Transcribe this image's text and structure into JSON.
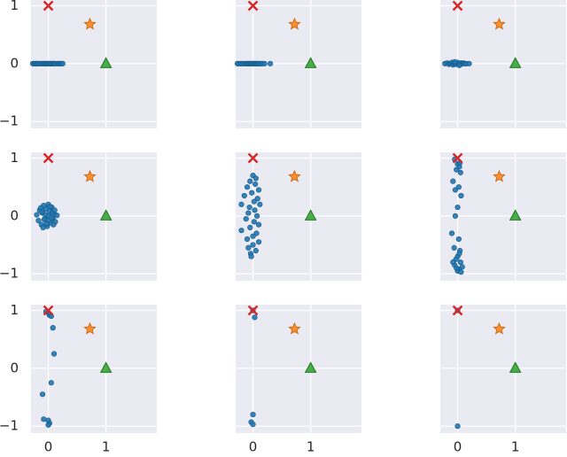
{
  "chart_data": [
    {
      "type": "scatter",
      "xlim": [
        -0.3,
        1.88
      ],
      "ylim": [
        -1.12,
        1.1
      ],
      "xticks": [
        0,
        1
      ],
      "yticks": [
        {
          "value": -1,
          "label": "−1"
        },
        0,
        1
      ],
      "grid": true,
      "series": [
        {
          "color": "#1f77b4",
          "marker": "circle",
          "x": [
            -0.27,
            -0.24,
            -0.22,
            -0.2,
            -0.18,
            -0.15,
            -0.13,
            -0.1,
            -0.08,
            -0.06,
            -0.04,
            -0.02,
            0,
            0.02,
            0.04,
            0.06,
            0.08,
            0.1,
            0.12,
            0.15,
            0.18,
            0.2,
            0.22,
            0.25
          ],
          "values": [
            0,
            0,
            0,
            0,
            0,
            0,
            0,
            0,
            0,
            0,
            0,
            0,
            0,
            0,
            0,
            0,
            0,
            0,
            0,
            0,
            0,
            0,
            0,
            0
          ]
        },
        {
          "color": "#d62728",
          "marker": "x",
          "x": [
            0
          ],
          "values": [
            1
          ]
        },
        {
          "color": "#ff7f0e",
          "marker": "star",
          "x": [
            0.72
          ],
          "values": [
            0.68
          ]
        },
        {
          "color": "#2ca02c",
          "marker": "triangle",
          "x": [
            1
          ],
          "values": [
            0
          ]
        }
      ]
    },
    {
      "type": "scatter",
      "xlim": [
        -0.3,
        1.88
      ],
      "ylim": [
        -1.12,
        1.1
      ],
      "xticks": [
        0,
        1
      ],
      "yticks": [
        {
          "value": -1,
          "label": "−1"
        },
        0,
        1
      ],
      "grid": true,
      "series": [
        {
          "color": "#1f77b4",
          "marker": "circle",
          "x": [
            -0.27,
            -0.24,
            -0.21,
            -0.18,
            -0.15,
            -0.12,
            -0.1,
            -0.08,
            -0.06,
            -0.04,
            -0.02,
            0,
            0.02,
            0.04,
            0.06,
            0.08,
            0.1,
            0.13,
            0.16,
            0.2,
            0.3
          ],
          "values": [
            0,
            0,
            0,
            0,
            0,
            0,
            0,
            0,
            0,
            0,
            0,
            0,
            0,
            0,
            0,
            0,
            0,
            0,
            0,
            0,
            0
          ]
        },
        {
          "color": "#d62728",
          "marker": "x",
          "x": [
            0
          ],
          "values": [
            1
          ]
        },
        {
          "color": "#ff7f0e",
          "marker": "star",
          "x": [
            0.72
          ],
          "values": [
            0.68
          ]
        },
        {
          "color": "#2ca02c",
          "marker": "triangle",
          "x": [
            1
          ],
          "values": [
            0
          ]
        }
      ]
    },
    {
      "type": "scatter",
      "xlim": [
        -0.3,
        1.88
      ],
      "ylim": [
        -1.12,
        1.1
      ],
      "xticks": [
        0,
        1
      ],
      "yticks": [
        {
          "value": -1,
          "label": "−1"
        },
        0,
        1
      ],
      "grid": true,
      "series": [
        {
          "color": "#1f77b4",
          "marker": "circle",
          "x": [
            -0.22,
            -0.18,
            -0.15,
            -0.12,
            -0.1,
            -0.08,
            -0.06,
            -0.04,
            -0.02,
            0,
            0.02,
            0.04,
            0.06,
            0.08,
            0.1,
            0.12,
            0.15,
            0.2,
            -0.05,
            0.03
          ],
          "values": [
            0,
            0.01,
            -0.01,
            0,
            0.02,
            -0.02,
            0.01,
            0,
            -0.01,
            0.02,
            0,
            -0.02,
            0.01,
            0,
            0.01,
            0,
            0,
            0,
            0.03,
            -0.03
          ]
        },
        {
          "color": "#d62728",
          "marker": "x",
          "x": [
            0
          ],
          "values": [
            1
          ]
        },
        {
          "color": "#ff7f0e",
          "marker": "star",
          "x": [
            0.72
          ],
          "values": [
            0.68
          ]
        },
        {
          "color": "#2ca02c",
          "marker": "triangle",
          "x": [
            1
          ],
          "values": [
            0
          ]
        }
      ]
    },
    {
      "type": "scatter",
      "xlim": [
        -0.3,
        1.88
      ],
      "ylim": [
        -1.12,
        1.1
      ],
      "xticks": [
        0,
        1
      ],
      "yticks": [
        {
          "value": -1,
          "label": "−1"
        },
        0,
        1
      ],
      "grid": true,
      "series": [
        {
          "color": "#1f77b4",
          "marker": "circle",
          "x": [
            -0.2,
            -0.17,
            -0.15,
            -0.12,
            -0.1,
            -0.08,
            -0.06,
            -0.04,
            -0.02,
            0,
            0.02,
            0.04,
            0.06,
            0.08,
            0.1,
            0.12,
            -0.13,
            -0.09,
            -0.05,
            0,
            0.03,
            0.07,
            0.11,
            -0.03,
            0.01,
            0.05,
            -0.07,
            0.09,
            0.15,
            -0.11
          ],
          "values": [
            0.02,
            -0.08,
            0.1,
            -0.15,
            0.05,
            0.18,
            -0.05,
            0.12,
            -0.18,
            0.2,
            0.08,
            -0.12,
            0.15,
            -0.05,
            0.03,
            -0.1,
            0.14,
            -0.2,
            0.02,
            -0.08,
            0.16,
            0.06,
            0.1,
            -0.14,
            0,
            -0.03,
            -0.06,
            -0.15,
            0.01,
            0.07
          ]
        },
        {
          "color": "#d62728",
          "marker": "x",
          "x": [
            0
          ],
          "values": [
            1
          ]
        },
        {
          "color": "#ff7f0e",
          "marker": "star",
          "x": [
            0.72
          ],
          "values": [
            0.68
          ]
        },
        {
          "color": "#2ca02c",
          "marker": "triangle",
          "x": [
            1
          ],
          "values": [
            0
          ]
        }
      ]
    },
    {
      "type": "scatter",
      "xlim": [
        -0.3,
        1.88
      ],
      "ylim": [
        -1.12,
        1.1
      ],
      "xticks": [
        0,
        1
      ],
      "yticks": [
        {
          "value": -1,
          "label": "−1"
        },
        0,
        1
      ],
      "grid": true,
      "series": [
        {
          "color": "#1f77b4",
          "marker": "circle",
          "x": [
            -0.2,
            -0.15,
            -0.1,
            -0.05,
            0,
            0.05,
            0.1,
            0.08,
            -0.02,
            0.03,
            -0.08,
            0.12,
            -0.12,
            0.02,
            -0.05,
            0.06,
            0.1,
            -0.2,
            -0.1,
            0,
            0.05,
            -0.04,
            0.1,
            -0.08,
            0.02,
            0.07,
            -0.06,
            0.0,
            0.04,
            -0.03
          ],
          "values": [
            0.2,
            0.35,
            0.5,
            0.6,
            0.7,
            0.65,
            0.45,
            0.3,
            0.4,
            0.1,
            0.05,
            0.2,
            -0.05,
            -0.1,
            -0.2,
            -0.3,
            -0.15,
            -0.25,
            -0.4,
            -0.5,
            -0.6,
            -0.65,
            -0.45,
            -0.55,
            0.25,
            0.0,
            0.15,
            -0.35,
            0.55,
            -0.7
          ]
        },
        {
          "color": "#d62728",
          "marker": "x",
          "x": [
            0
          ],
          "values": [
            1
          ]
        },
        {
          "color": "#ff7f0e",
          "marker": "star",
          "x": [
            0.72
          ],
          "values": [
            0.68
          ]
        },
        {
          "color": "#2ca02c",
          "marker": "triangle",
          "x": [
            1
          ],
          "values": [
            0
          ]
        }
      ]
    },
    {
      "type": "scatter",
      "xlim": [
        -0.3,
        1.88
      ],
      "ylim": [
        -1.12,
        1.1
      ],
      "xticks": [
        0,
        1
      ],
      "yticks": [
        {
          "value": -1,
          "label": "−1"
        },
        0,
        1
      ],
      "grid": true,
      "series": [
        {
          "color": "#1f77b4",
          "marker": "circle",
          "x": [
            -0.05,
            0,
            0.03,
            -0.02,
            0.05,
            -0.08,
            0.02,
            -0.04,
            0.06,
            0,
            -0.1,
            0.02,
            -0.06,
            0.04,
            0.0,
            -0.03,
            0.05,
            -0.05,
            0.08,
            -0.08,
            0.02,
            0.0,
            0.06,
            -0.02,
            0.04,
            -0.04,
            0.03
          ],
          "values": [
            0.98,
            0.9,
            0.85,
            0.8,
            0.75,
            0.6,
            0.5,
            0.45,
            0.35,
            0.15,
            -0.3,
            -0.4,
            -0.55,
            -0.6,
            -0.7,
            -0.75,
            -0.8,
            -0.85,
            -0.88,
            -0.8,
            -0.92,
            -0.95,
            -0.97,
            -0.9,
            0.92,
            0.0,
            -0.65
          ]
        },
        {
          "color": "#d62728",
          "marker": "x",
          "x": [
            0
          ],
          "values": [
            1
          ]
        },
        {
          "color": "#ff7f0e",
          "marker": "star",
          "x": [
            0.72
          ],
          "values": [
            0.68
          ]
        },
        {
          "color": "#2ca02c",
          "marker": "triangle",
          "x": [
            1
          ],
          "values": [
            0
          ]
        }
      ]
    },
    {
      "type": "scatter",
      "xlim": [
        -0.3,
        1.88
      ],
      "ylim": [
        -1.12,
        1.1
      ],
      "xticks": [
        0,
        1
      ],
      "yticks": [
        {
          "value": -1,
          "label": "−1"
        },
        0,
        1
      ],
      "grid": true,
      "series": [
        {
          "color": "#1f77b4",
          "marker": "circle",
          "x": [
            -0.04,
            0,
            0.02,
            0.05,
            0.08,
            0.1,
            0.05,
            -0.1,
            -0.08,
            0,
            0.02,
            0.0
          ],
          "values": [
            0.98,
            0.96,
            0.92,
            0.9,
            0.7,
            0.25,
            -0.25,
            -0.45,
            -0.88,
            -0.9,
            -0.95,
            -0.98
          ]
        },
        {
          "color": "#d62728",
          "marker": "x",
          "x": [
            0
          ],
          "values": [
            1
          ]
        },
        {
          "color": "#ff7f0e",
          "marker": "star",
          "x": [
            0.72
          ],
          "values": [
            0.68
          ]
        },
        {
          "color": "#2ca02c",
          "marker": "triangle",
          "x": [
            1
          ],
          "values": [
            0
          ]
        }
      ]
    },
    {
      "type": "scatter",
      "xlim": [
        -0.3,
        1.88
      ],
      "ylim": [
        -1.12,
        1.1
      ],
      "xticks": [
        0,
        1
      ],
      "yticks": [
        {
          "value": -1,
          "label": "−1"
        },
        0,
        1
      ],
      "grid": true,
      "series": [
        {
          "color": "#1f77b4",
          "marker": "circle",
          "x": [
            0,
            0.03,
            0.0,
            -0.03,
            0.0
          ],
          "values": [
            1,
            0.88,
            -0.8,
            -0.93,
            -0.97
          ]
        },
        {
          "color": "#d62728",
          "marker": "x",
          "x": [
            0
          ],
          "values": [
            1
          ]
        },
        {
          "color": "#ff7f0e",
          "marker": "star",
          "x": [
            0.72
          ],
          "values": [
            0.68
          ]
        },
        {
          "color": "#2ca02c",
          "marker": "triangle",
          "x": [
            1
          ],
          "values": [
            0
          ]
        }
      ]
    },
    {
      "type": "scatter",
      "xlim": [
        -0.3,
        1.88
      ],
      "ylim": [
        -1.12,
        1.1
      ],
      "xticks": [
        0,
        1
      ],
      "yticks": [
        {
          "value": -1,
          "label": "−1"
        },
        0,
        1
      ],
      "grid": true,
      "series": [
        {
          "color": "#1f77b4",
          "marker": "circle",
          "x": [
            0,
            0
          ],
          "values": [
            1,
            -1
          ]
        },
        {
          "color": "#d62728",
          "marker": "x",
          "x": [
            0
          ],
          "values": [
            1
          ]
        },
        {
          "color": "#ff7f0e",
          "marker": "star",
          "x": [
            0.72
          ],
          "values": [
            0.68
          ]
        },
        {
          "color": "#2ca02c",
          "marker": "triangle",
          "x": [
            1
          ],
          "values": [
            0
          ]
        }
      ]
    }
  ]
}
